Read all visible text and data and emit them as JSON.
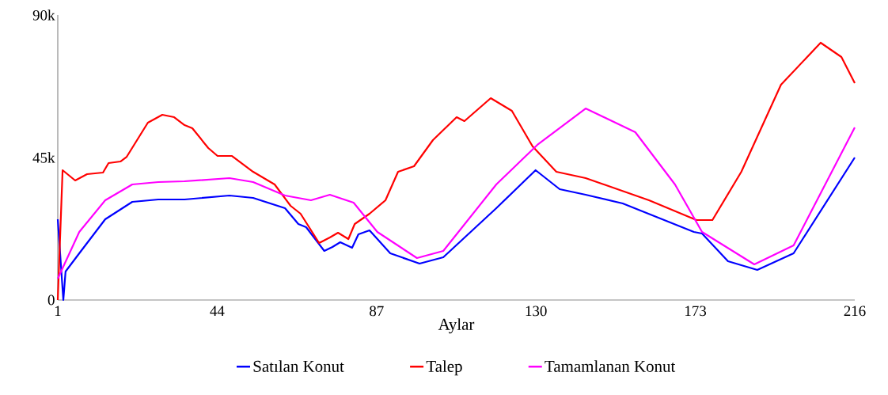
{
  "chart_data": {
    "type": "line",
    "xlabel": "Aylar",
    "xlim": [
      1,
      216
    ],
    "xticks": [
      1,
      44,
      87,
      130,
      173,
      216
    ],
    "ylim": [
      0,
      90000
    ],
    "yticks": [
      0,
      {
        "value": 45000,
        "label": "45k"
      },
      {
        "value": 90000,
        "label": "90k"
      }
    ],
    "legend": "bottom",
    "marker": "none",
    "line_style": "solid",
    "series": [
      {
        "name": "Satılan Konut",
        "color": "#0000ff",
        "x": [
          1,
          2.5,
          3.1,
          6.8,
          13.8,
          21.1,
          28.1,
          35.2,
          47.3,
          53.7,
          62.3,
          65.9,
          68.0,
          72.9,
          75.1,
          77.2,
          80.4,
          82.1,
          85.1,
          90.7,
          98.6,
          105.0,
          119.3,
          129.9,
          136.4,
          143.4,
          153.4,
          172.6,
          174.8,
          181.8,
          189.7,
          199.5,
          216
        ],
        "values": [
          25500,
          0,
          9000,
          14750,
          25500,
          31000,
          31750,
          31750,
          33000,
          32250,
          29000,
          24000,
          23000,
          15500,
          16750,
          18250,
          16500,
          20750,
          22000,
          14750,
          11500,
          13500,
          29000,
          41000,
          35000,
          33250,
          30500,
          21500,
          21000,
          12250,
          9500,
          14750,
          45000
        ]
      },
      {
        "name": "Talep",
        "color": "#ff0000",
        "x": [
          1,
          2.3,
          5.7,
          8.9,
          13.2,
          14.7,
          17.9,
          19.6,
          25.3,
          29.2,
          32.4,
          35.2,
          37.3,
          41.6,
          44.1,
          48.0,
          53.7,
          59.5,
          63.8,
          66.5,
          71.5,
          74.4,
          76.6,
          79.4,
          81.1,
          85.1,
          89.4,
          92.8,
          97.1,
          102.2,
          108.6,
          110.7,
          117.8,
          123.5,
          129.1,
          135.5,
          143.4,
          160.5,
          173.3,
          177.6,
          185.4,
          196.1,
          206.8,
          212.4,
          216
        ],
        "values": [
          0,
          41000,
          37750,
          39750,
          40250,
          43250,
          43750,
          45250,
          56000,
          58500,
          57750,
          55250,
          54250,
          48000,
          45500,
          45500,
          40500,
          36500,
          29750,
          27250,
          18000,
          19750,
          21250,
          19250,
          24000,
          27250,
          31500,
          40500,
          42250,
          50500,
          57750,
          56500,
          63750,
          59750,
          48500,
          40500,
          38500,
          31500,
          25250,
          25250,
          40500,
          68000,
          81250,
          76750,
          68500
        ]
      },
      {
        "name": "Tamamlanan Konut",
        "color": "#ff00ff",
        "x": [
          1,
          6.8,
          13.8,
          21.1,
          28.1,
          35.2,
          47.3,
          53.7,
          62.3,
          69.3,
          74.4,
          80.8,
          87.2,
          97.9,
          105.0,
          119.3,
          130.6,
          143.4,
          156.8,
          167.5,
          174.8,
          188.9,
          199.5,
          216
        ],
        "values": [
          6750,
          21500,
          31500,
          36500,
          37250,
          37500,
          38500,
          37250,
          33000,
          31500,
          33250,
          30750,
          21500,
          13250,
          15500,
          36500,
          49250,
          60500,
          53000,
          36500,
          21500,
          11250,
          17250,
          54500
        ]
      }
    ]
  }
}
